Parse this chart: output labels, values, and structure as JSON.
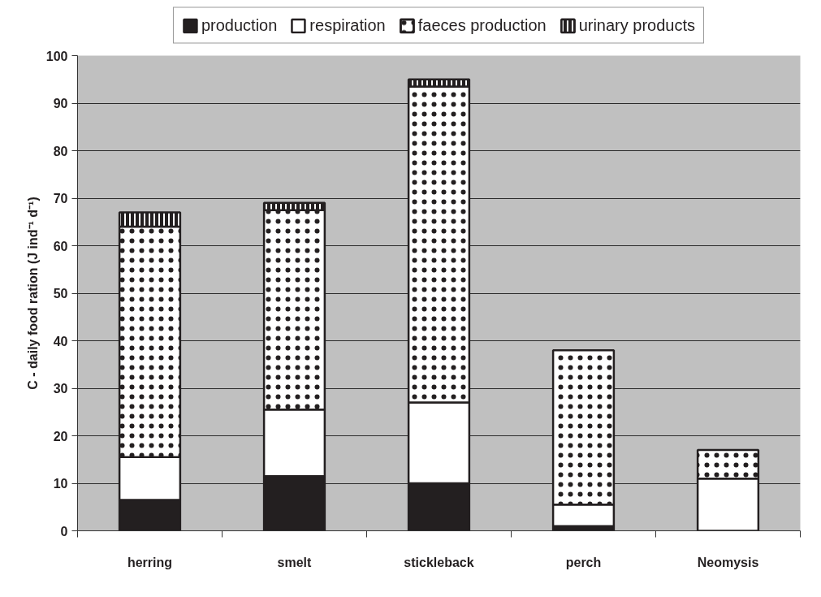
{
  "chart_data": {
    "type": "bar",
    "stacked": true,
    "ylabel": "C - daily food ration (J ind⁻¹ d⁻¹)",
    "categories": [
      "herring",
      "smelt",
      "stickleback",
      "perch",
      "Neomysis"
    ],
    "series": [
      {
        "name": "production",
        "color": "#231f20",
        "values": [
          6.5,
          11.5,
          10,
          1,
          null
        ]
      },
      {
        "name": "respiration",
        "color": "#ffffff",
        "values": [
          9,
          14,
          17,
          4.5,
          11
        ]
      },
      {
        "name": "faeces production",
        "color": "#ffffff",
        "values": [
          48.5,
          42,
          66.5,
          32.5,
          6
        ]
      },
      {
        "name": "urinary products",
        "color": "#231f20",
        "values": [
          3,
          1.5,
          1.5,
          null,
          null
        ]
      }
    ],
    "ylim": [
      0,
      100
    ],
    "yticks": [
      0,
      10,
      20,
      30,
      40,
      50,
      60,
      70,
      80,
      90,
      100
    ],
    "grid": "y",
    "legend": "top"
  }
}
